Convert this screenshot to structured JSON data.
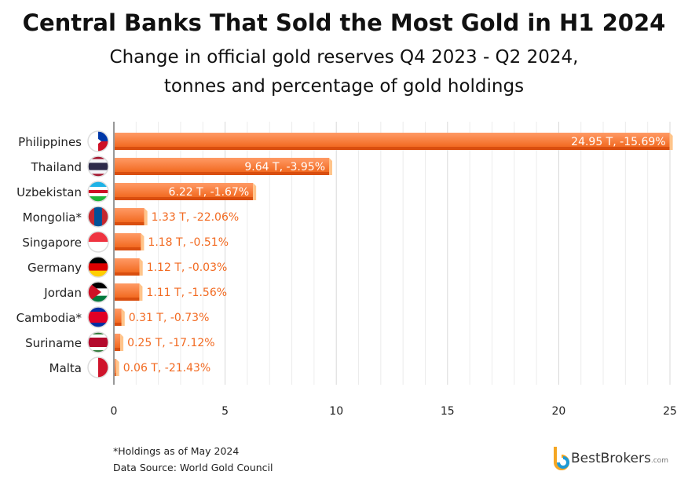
{
  "chart_data": {
    "type": "bar",
    "orientation": "horizontal",
    "title": "Central Banks That Sold the Most Gold in H1 2024",
    "subtitle": [
      "Change in official gold reserves Q4 2023 - Q2 2024,",
      "tonnes and percentage of gold holdings"
    ],
    "categories": [
      "Philippines",
      "Thailand",
      "Uzbekistan",
      "Mongolia*",
      "Singapore",
      "Germany",
      "Jordan",
      "Cambodia*",
      "Suriname",
      "Malta"
    ],
    "values": [
      24.95,
      9.64,
      6.22,
      1.33,
      1.18,
      1.12,
      1.11,
      0.31,
      0.25,
      0.06
    ],
    "data_labels": [
      "24.95 T, -15.69%",
      "9.64 T, -3.95%",
      "6.22 T, -1.67%",
      "1.33 T, -22.06%",
      "1.18 T, -0.51%",
      "1.12 T, -0.03%",
      "1.11 T, -1.56%",
      "0.31 T, -0.73%",
      "0.25 T, -17.12%",
      "0.06 T, -21.43%"
    ],
    "xlim": [
      0,
      25
    ],
    "xticks": [
      "0",
      "5",
      "10",
      "15",
      "20",
      "25"
    ],
    "grid": true,
    "bar_color": "#f26a21",
    "label_color": "#f26a21"
  },
  "footer": {
    "note": "*Holdings as of May 2024",
    "source": "Data Source: World Gold Council"
  },
  "logo": {
    "brand": "BestBrokers",
    "suffix": ".com"
  }
}
